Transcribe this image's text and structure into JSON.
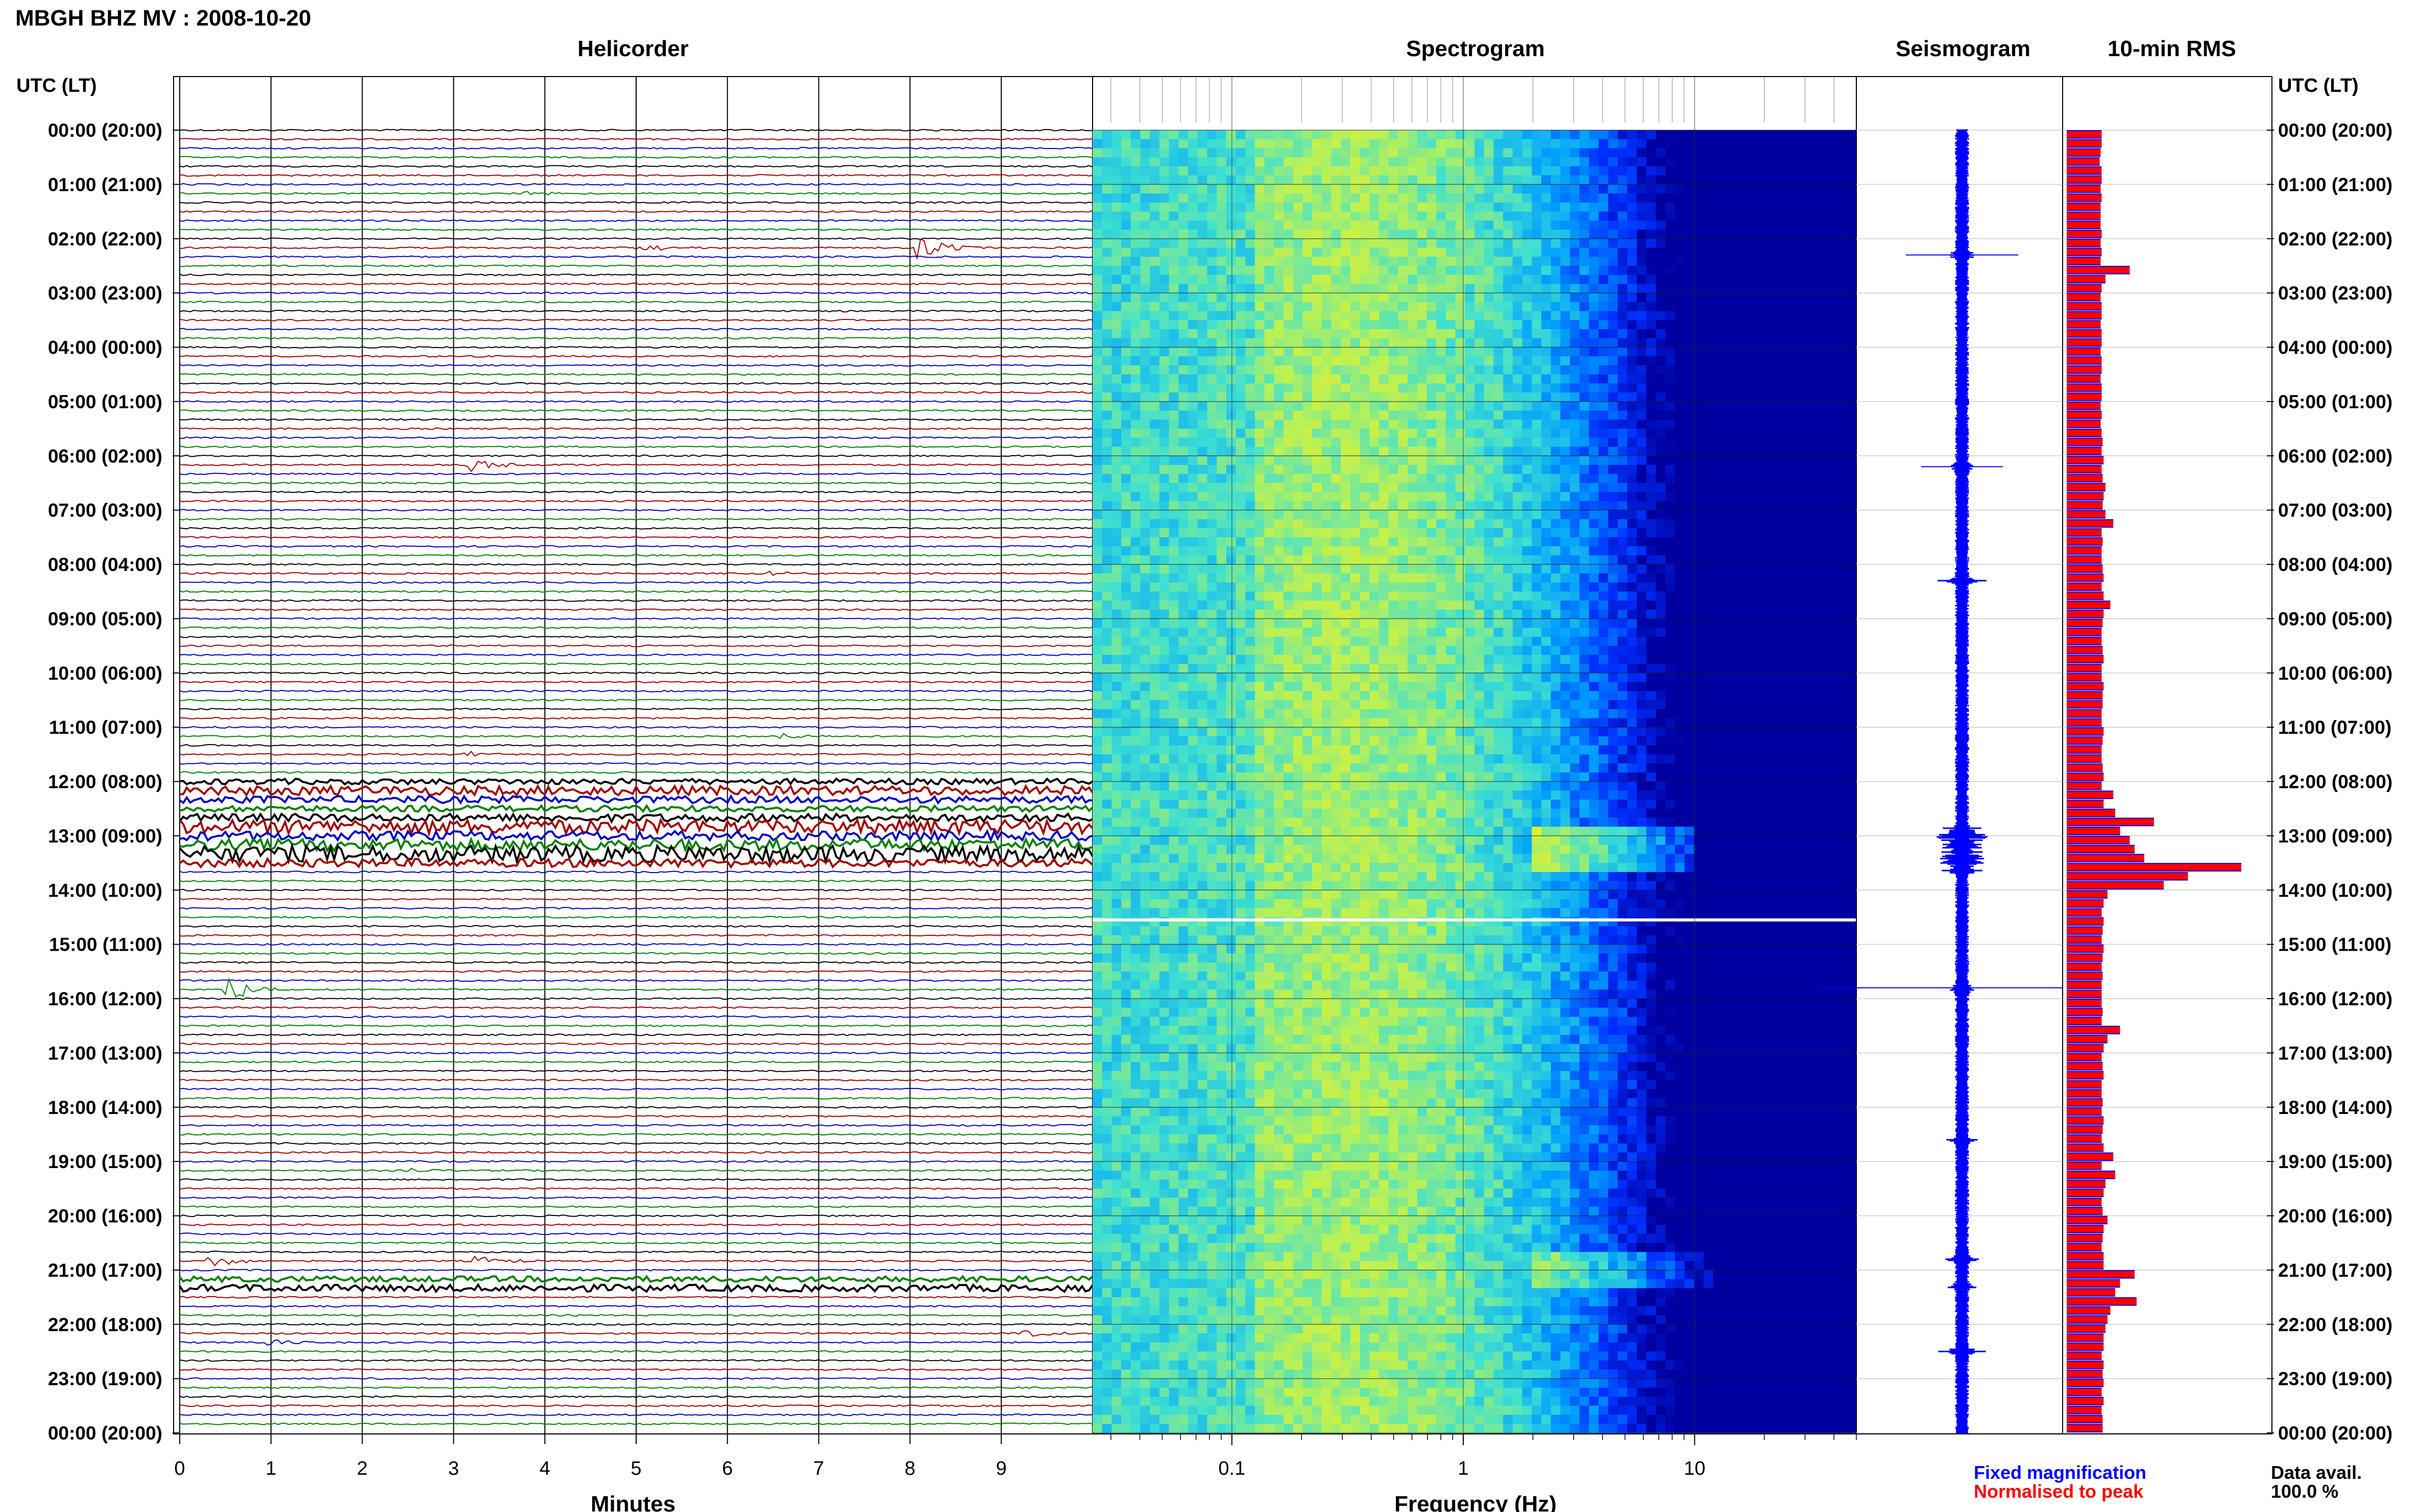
{
  "station_title": "MBGH BHZ MV : 2008-10-20",
  "panels": {
    "helicorder": "Helicorder",
    "spectrogram": "Spectrogram",
    "seismogram": "Seismogram",
    "rms": "10-min RMS"
  },
  "utc_label_left": "UTC (LT)",
  "utc_label_right": "UTC (LT)",
  "time_labels": [
    "00:00 (20:00)",
    "01:00 (21:00)",
    "02:00 (22:00)",
    "03:00 (23:00)",
    "04:00 (00:00)",
    "05:00 (01:00)",
    "06:00 (02:00)",
    "07:00 (03:00)",
    "08:00 (04:00)",
    "09:00 (05:00)",
    "10:00 (06:00)",
    "11:00 (07:00)",
    "12:00 (08:00)",
    "13:00 (09:00)",
    "14:00 (10:00)",
    "15:00 (11:00)",
    "16:00 (12:00)",
    "17:00 (13:00)",
    "18:00 (14:00)",
    "19:00 (15:00)",
    "20:00 (16:00)",
    "21:00 (17:00)",
    "22:00 (18:00)",
    "23:00 (19:00)",
    "00:00 (20:00)"
  ],
  "helicorder_axis": {
    "xlabel": "Minutes",
    "ticks": [
      "0",
      "1",
      "2",
      "3",
      "4",
      "5",
      "6",
      "7",
      "8",
      "9"
    ]
  },
  "spectrogram_axis": {
    "xlabel": "Frequency (Hz)",
    "ticks": [
      "0.1",
      "1",
      "10"
    ]
  },
  "legend": {
    "fixed": "Fixed magnification",
    "normalised": "Normalised to peak"
  },
  "data_avail": {
    "label": "Data avail.",
    "value": "100.0 %"
  },
  "colors": {
    "trace_cycle": [
      "#000000",
      "#a00000",
      "#0000c0",
      "#008000"
    ],
    "fixed": "#0000ff",
    "normalised": "#ff0000"
  },
  "chart_data": [
    {
      "type": "line",
      "name": "helicorder",
      "x_range_minutes": [
        0,
        10
      ],
      "rows": 144,
      "row_minutes": 10,
      "events": [
        {
          "hour": 1.17,
          "minute": 3.85,
          "amp": 0.15
        },
        {
          "hour": 2.17,
          "minute": 5.1,
          "amp": 0.3
        },
        {
          "hour": 2.17,
          "minute": 8.15,
          "amp": 1.2
        },
        {
          "hour": 6.17,
          "minute": 3.25,
          "amp": 0.6
        },
        {
          "hour": 7.33,
          "minute": 4.3,
          "amp": 0.15
        },
        {
          "hour": 8.17,
          "minute": 6.5,
          "amp": 0.2
        },
        {
          "hour": 11.17,
          "minute": 6.6,
          "amp": 0.3
        },
        {
          "hour": 11.5,
          "minute": 3.2,
          "amp": 0.2
        },
        {
          "hour": 15.83,
          "minute": 0.6,
          "amp": 1.0
        },
        {
          "hour": 19.17,
          "minute": 2.6,
          "amp": 0.15
        },
        {
          "hour": 20.83,
          "minute": 0.4,
          "amp": 0.5
        },
        {
          "hour": 20.83,
          "minute": 3.3,
          "amp": 0.4
        },
        {
          "hour": 22.33,
          "minute": 1.05,
          "amp": 0.6
        },
        {
          "hour": 22.17,
          "minute": 9.3,
          "amp": 0.3
        }
      ],
      "noisy_rows": [
        {
          "hour": 12.0,
          "level": 1.2
        },
        {
          "hour": 12.17,
          "level": 2.0
        },
        {
          "hour": 12.33,
          "level": 1.5
        },
        {
          "hour": 12.5,
          "level": 1.3
        },
        {
          "hour": 12.67,
          "level": 1.7
        },
        {
          "hour": 12.83,
          "level": 3.0
        },
        {
          "hour": 13.0,
          "level": 2.0
        },
        {
          "hour": 13.17,
          "level": 2.5
        },
        {
          "hour": 13.33,
          "level": 3.5
        },
        {
          "hour": 13.5,
          "level": 1.8
        },
        {
          "hour": 21.17,
          "level": 1.2
        },
        {
          "hour": 21.33,
          "level": 1.5
        }
      ]
    },
    {
      "type": "heatmap",
      "name": "spectrogram",
      "xscale": "log",
      "xlim_hz": [
        0.025,
        50
      ],
      "ylim_hours": [
        0,
        24
      ],
      "colormap": [
        "#0000a0",
        "#0030ff",
        "#00a0ff",
        "#40e0d0",
        "#b0f060",
        "#f0f020"
      ],
      "gap_hours": 14.55
    },
    {
      "type": "line",
      "name": "seismogram",
      "events_hours": [
        2.3,
        6.2,
        8.3,
        13.0,
        13.4,
        15.8,
        18.6,
        20.8,
        21.3,
        22.5
      ]
    },
    {
      "type": "bar",
      "name": "rms",
      "bin_minutes": 10,
      "fixed_values": [
        0.36,
        0.36,
        0.35,
        0.34,
        0.36,
        0.36,
        0.35,
        0.36,
        0.35,
        0.35,
        0.35,
        0.36,
        0.35,
        0.36,
        0.35,
        0.65,
        0.4,
        0.36,
        0.35,
        0.36,
        0.36,
        0.35,
        0.36,
        0.36,
        0.35,
        0.36,
        0.36,
        0.35,
        0.36,
        0.36,
        0.35,
        0.36,
        0.35,
        0.36,
        0.37,
        0.36,
        0.38,
        0.36,
        0.37,
        0.4,
        0.38,
        0.37,
        0.4,
        0.48,
        0.36,
        0.37,
        0.36,
        0.36,
        0.37,
        0.38,
        0.36,
        0.38,
        0.45,
        0.38,
        0.37,
        0.36,
        0.36,
        0.37,
        0.38,
        0.36,
        0.36,
        0.38,
        0.37,
        0.37,
        0.36,
        0.36,
        0.38,
        0.37,
        0.36,
        0.36,
        0.37,
        0.38,
        0.36,
        0.48,
        0.38,
        0.5,
        0.9,
        0.55,
        0.65,
        0.7,
        0.8,
        1.8,
        1.25,
        1.0,
        0.42,
        0.38,
        0.36,
        0.38,
        0.37,
        0.36,
        0.38,
        0.37,
        0.36,
        0.37,
        0.36,
        0.36,
        0.36,
        0.37,
        0.36,
        0.55,
        0.42,
        0.38,
        0.36,
        0.37,
        0.38,
        0.36,
        0.36,
        0.37,
        0.36,
        0.38,
        0.37,
        0.36,
        0.38,
        0.48,
        0.36,
        0.5,
        0.4,
        0.38,
        0.36,
        0.37,
        0.42,
        0.38,
        0.37,
        0.36,
        0.38,
        0.38,
        0.7,
        0.55,
        0.5,
        0.72,
        0.45,
        0.42,
        0.4,
        0.38,
        0.38,
        0.36,
        0.38,
        0.37,
        0.38,
        0.36,
        0.38,
        0.36,
        0.37,
        0.37
      ],
      "normalised_peak_index": 82
    }
  ]
}
